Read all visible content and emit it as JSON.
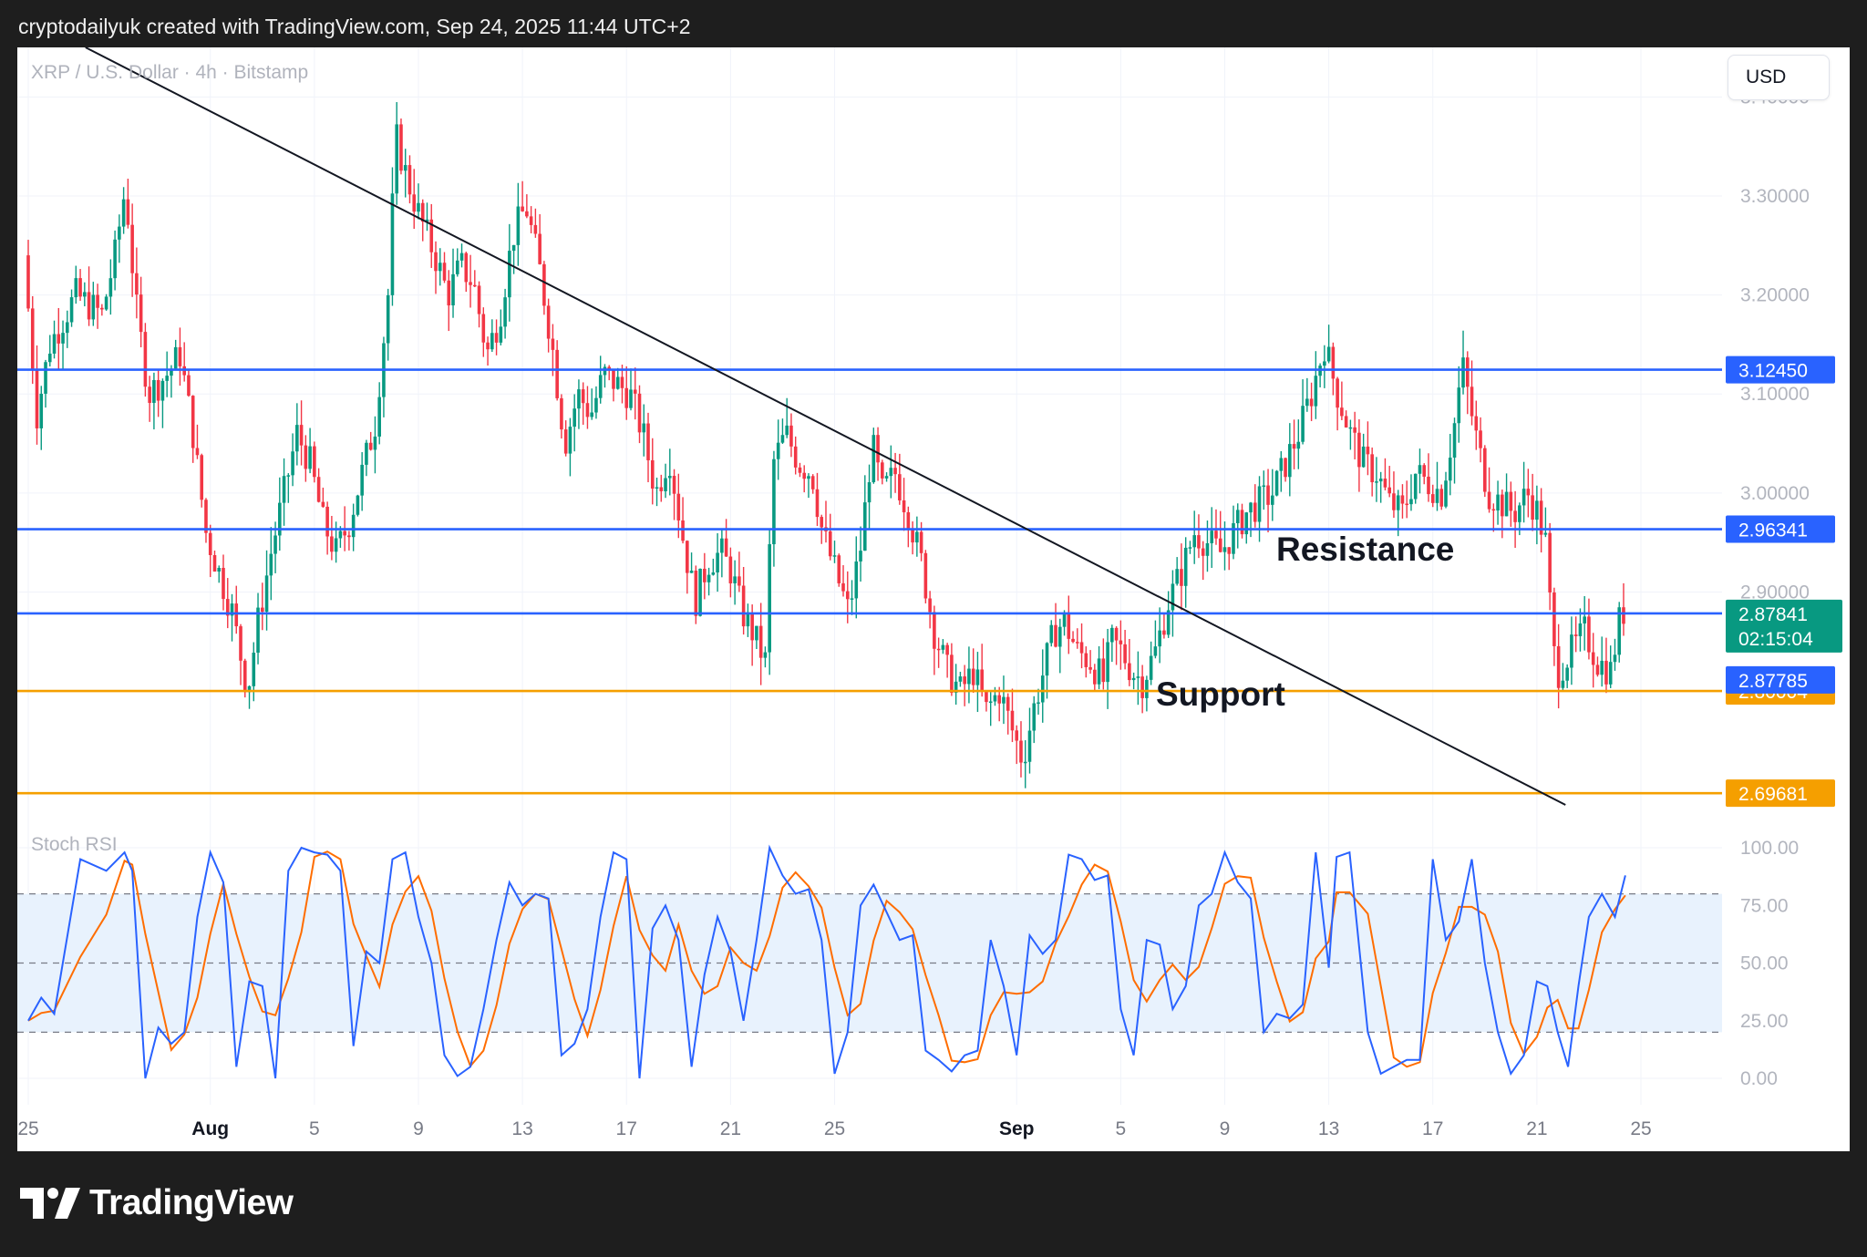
{
  "header": {
    "text": "cryptodailyuk created with TradingView.com, Sep 24, 2025 11:44 UTC+2"
  },
  "symbol_label": "XRP / U.S. Dollar · 4h · Bitstamp",
  "currency_button": "USD",
  "footer": {
    "brand": "TradingView",
    "logo_icon": "tradingview-logo-icon"
  },
  "colors": {
    "up": "#089981",
    "down": "#f23645",
    "blue_level": "#2962ff",
    "orange_level": "#f59f00",
    "stoch_k": "#2962ff",
    "stoch_d": "#ff6d00",
    "stoch_band": "#e8f2fd"
  },
  "chart_data": {
    "type": "candlestick",
    "symbol": "XRP / U.S. Dollar",
    "interval": "4h",
    "exchange": "Bitstamp",
    "date_range": [
      "2025-07-25",
      "2025-09-24"
    ],
    "x_ticks": [
      "25",
      "Aug",
      "5",
      "9",
      "13",
      "17",
      "21",
      "25",
      "Sep",
      "5",
      "9",
      "13",
      "17",
      "21",
      "25"
    ],
    "x_tick_days": [
      0,
      7,
      11,
      15,
      19,
      23,
      27,
      31,
      38,
      42,
      46,
      50,
      54,
      58,
      62
    ],
    "bold_x_ticks": [
      "Aug",
      "Sep"
    ],
    "last_candle_day": 61.4,
    "y_axis": {
      "ticks": [
        "3.40000",
        "3.30000",
        "3.20000",
        "3.10000",
        "3.00000",
        "2.90000"
      ],
      "tick_values": [
        3.4,
        3.3,
        3.2,
        3.1,
        3.0,
        2.9
      ],
      "range": [
        2.65,
        3.45
      ]
    },
    "price_path": [
      [
        0.0,
        3.24
      ],
      [
        0.5,
        3.08
      ],
      [
        1.0,
        3.15
      ],
      [
        2.0,
        3.2
      ],
      [
        3.0,
        3.18
      ],
      [
        3.5,
        3.24
      ],
      [
        3.9,
        3.31
      ],
      [
        4.3,
        3.19
      ],
      [
        4.8,
        3.1
      ],
      [
        5.5,
        3.12
      ],
      [
        6.0,
        3.14
      ],
      [
        6.5,
        3.06
      ],
      [
        7.0,
        2.96
      ],
      [
        7.5,
        2.92
      ],
      [
        8.0,
        2.88
      ],
      [
        8.6,
        2.8
      ],
      [
        9.0,
        2.87
      ],
      [
        9.5,
        2.94
      ],
      [
        10.0,
        3.0
      ],
      [
        10.5,
        3.06
      ],
      [
        11.0,
        3.03
      ],
      [
        11.5,
        2.97
      ],
      [
        12.0,
        2.94
      ],
      [
        12.5,
        2.97
      ],
      [
        13.0,
        3.02
      ],
      [
        13.5,
        3.07
      ],
      [
        14.0,
        3.2
      ],
      [
        14.3,
        3.36
      ],
      [
        14.7,
        3.32
      ],
      [
        15.2,
        3.28
      ],
      [
        15.8,
        3.24
      ],
      [
        16.3,
        3.2
      ],
      [
        16.8,
        3.23
      ],
      [
        17.3,
        3.21
      ],
      [
        17.8,
        3.14
      ],
      [
        18.3,
        3.18
      ],
      [
        18.8,
        3.26
      ],
      [
        19.3,
        3.29
      ],
      [
        19.8,
        3.23
      ],
      [
        20.3,
        3.15
      ],
      [
        20.8,
        3.05
      ],
      [
        21.3,
        3.1
      ],
      [
        21.8,
        3.08
      ],
      [
        22.3,
        3.12
      ],
      [
        22.8,
        3.11
      ],
      [
        23.3,
        3.1
      ],
      [
        23.8,
        3.06
      ],
      [
        24.3,
        3.0
      ],
      [
        24.8,
        3.04
      ],
      [
        25.3,
        2.96
      ],
      [
        25.8,
        2.89
      ],
      [
        26.3,
        2.93
      ],
      [
        26.8,
        2.94
      ],
      [
        27.2,
        2.92
      ],
      [
        27.6,
        2.88
      ],
      [
        28.0,
        2.86
      ],
      [
        28.5,
        2.83
      ],
      [
        28.8,
        3.03
      ],
      [
        29.3,
        3.06
      ],
      [
        29.8,
        3.03
      ],
      [
        30.3,
        3.02
      ],
      [
        30.7,
        2.96
      ],
      [
        31.2,
        2.92
      ],
      [
        31.7,
        2.88
      ],
      [
        32.2,
        2.95
      ],
      [
        32.6,
        3.05
      ],
      [
        33.0,
        3.0
      ],
      [
        33.5,
        3.02
      ],
      [
        34.0,
        2.98
      ],
      [
        34.5,
        2.93
      ],
      [
        35.0,
        2.86
      ],
      [
        35.5,
        2.82
      ],
      [
        36.0,
        2.8
      ],
      [
        36.5,
        2.82
      ],
      [
        37.0,
        2.78
      ],
      [
        37.5,
        2.8
      ],
      [
        38.0,
        2.76
      ],
      [
        38.4,
        2.73
      ],
      [
        38.8,
        2.78
      ],
      [
        39.2,
        2.82
      ],
      [
        39.6,
        2.86
      ],
      [
        40.0,
        2.87
      ],
      [
        40.5,
        2.84
      ],
      [
        41.0,
        2.83
      ],
      [
        41.5,
        2.81
      ],
      [
        41.8,
        2.85
      ],
      [
        42.2,
        2.84
      ],
      [
        42.6,
        2.82
      ],
      [
        43.0,
        2.81
      ],
      [
        43.5,
        2.84
      ],
      [
        44.0,
        2.89
      ],
      [
        44.5,
        2.92
      ],
      [
        45.0,
        2.96
      ],
      [
        45.5,
        2.95
      ],
      [
        46.0,
        2.94
      ],
      [
        46.5,
        2.96
      ],
      [
        47.0,
        2.98
      ],
      [
        47.5,
        2.99
      ],
      [
        48.0,
        3.0
      ],
      [
        48.5,
        3.03
      ],
      [
        49.0,
        3.06
      ],
      [
        49.5,
        3.1
      ],
      [
        50.0,
        3.15
      ],
      [
        50.5,
        3.1
      ],
      [
        51.0,
        3.06
      ],
      [
        51.5,
        3.03
      ],
      [
        52.0,
        3.02
      ],
      [
        52.5,
        2.99
      ],
      [
        53.0,
        2.98
      ],
      [
        53.5,
        3.02
      ],
      [
        54.0,
        3.01
      ],
      [
        54.5,
        3.0
      ],
      [
        55.0,
        3.07
      ],
      [
        55.3,
        3.13
      ],
      [
        55.8,
        3.06
      ],
      [
        56.3,
        3.0
      ],
      [
        56.8,
        2.99
      ],
      [
        57.3,
        2.98
      ],
      [
        57.8,
        3.0
      ],
      [
        58.2,
        2.98
      ],
      [
        58.5,
        2.95
      ],
      [
        58.8,
        2.84
      ],
      [
        59.0,
        2.82
      ],
      [
        59.5,
        2.84
      ],
      [
        60.0,
        2.86
      ],
      [
        60.5,
        2.83
      ],
      [
        61.0,
        2.82
      ],
      [
        61.4,
        2.88
      ]
    ],
    "horizontal_levels": [
      {
        "value": 3.1245,
        "label": "3.12450",
        "color": "#2962ff"
      },
      {
        "value": 2.96341,
        "label": "2.96341",
        "color": "#2962ff"
      },
      {
        "value": 2.87841,
        "label": "2.87841",
        "color": "#2962ff"
      },
      {
        "value": 2.80004,
        "label": "2.80004",
        "color": "#f59f00"
      },
      {
        "value": 2.69681,
        "label": "2.69681",
        "color": "#f59f00"
      }
    ],
    "current_price": {
      "value": 2.87841,
      "label": "2.87841",
      "countdown": "02:15:04"
    },
    "alt_price": {
      "value": 2.87785,
      "label": "2.87785"
    },
    "trendline": {
      "from": [
        2.2,
        3.45
      ],
      "to": [
        59.1,
        2.685
      ]
    },
    "annotations": [
      {
        "text": "Resistance"
      },
      {
        "text": "Support"
      }
    ],
    "stoch_rsi": {
      "label": "Stoch RSI",
      "y_ticks": [
        "100.00",
        "75.00",
        "50.00",
        "25.00",
        "0.00"
      ],
      "tick_values": [
        100,
        75,
        50,
        25,
        0
      ],
      "range": [
        0,
        100
      ],
      "band": [
        20,
        80
      ],
      "midline": 50,
      "k": [
        [
          0.0,
          25
        ],
        [
          0.5,
          35
        ],
        [
          1.0,
          28
        ],
        [
          2.0,
          95
        ],
        [
          3.0,
          90
        ],
        [
          3.7,
          98
        ],
        [
          4.0,
          90
        ],
        [
          4.5,
          0
        ],
        [
          5.0,
          22
        ],
        [
          5.5,
          15
        ],
        [
          6.0,
          20
        ],
        [
          6.5,
          70
        ],
        [
          7.0,
          98
        ],
        [
          7.5,
          85
        ],
        [
          8.0,
          5
        ],
        [
          8.5,
          42
        ],
        [
          9.0,
          40
        ],
        [
          9.5,
          0
        ],
        [
          10.0,
          90
        ],
        [
          10.5,
          100
        ],
        [
          11.0,
          98
        ],
        [
          11.5,
          97
        ],
        [
          12.0,
          90
        ],
        [
          12.5,
          14
        ],
        [
          13.0,
          55
        ],
        [
          13.5,
          50
        ],
        [
          14.0,
          95
        ],
        [
          14.5,
          98
        ],
        [
          15.0,
          70
        ],
        [
          15.5,
          50
        ],
        [
          16.0,
          10
        ],
        [
          16.5,
          1
        ],
        [
          17.0,
          5
        ],
        [
          17.5,
          30
        ],
        [
          18.0,
          60
        ],
        [
          18.5,
          85
        ],
        [
          19.0,
          75
        ],
        [
          19.5,
          80
        ],
        [
          20.0,
          78
        ],
        [
          20.5,
          10
        ],
        [
          21.0,
          15
        ],
        [
          21.5,
          30
        ],
        [
          22.0,
          70
        ],
        [
          22.5,
          98
        ],
        [
          23.0,
          95
        ],
        [
          23.5,
          0
        ],
        [
          24.0,
          65
        ],
        [
          24.5,
          75
        ],
        [
          25.0,
          60
        ],
        [
          25.5,
          5
        ],
        [
          26.0,
          45
        ],
        [
          26.5,
          70
        ],
        [
          27.0,
          55
        ],
        [
          27.5,
          25
        ],
        [
          28.0,
          60
        ],
        [
          28.5,
          100
        ],
        [
          29.0,
          88
        ],
        [
          29.5,
          80
        ],
        [
          30.0,
          82
        ],
        [
          30.5,
          60
        ],
        [
          31.0,
          2
        ],
        [
          31.5,
          20
        ],
        [
          32.0,
          75
        ],
        [
          32.5,
          84
        ],
        [
          33.0,
          72
        ],
        [
          33.5,
          60
        ],
        [
          34.0,
          62
        ],
        [
          34.5,
          12
        ],
        [
          35.0,
          8
        ],
        [
          35.5,
          3
        ],
        [
          36.0,
          10
        ],
        [
          36.5,
          12
        ],
        [
          37.0,
          60
        ],
        [
          37.5,
          40
        ],
        [
          38.0,
          10
        ],
        [
          38.5,
          62
        ],
        [
          39.0,
          54
        ],
        [
          39.5,
          60
        ],
        [
          40.0,
          97
        ],
        [
          40.5,
          95
        ],
        [
          41.0,
          86
        ],
        [
          41.5,
          88
        ],
        [
          42.0,
          30
        ],
        [
          42.5,
          10
        ],
        [
          43.0,
          60
        ],
        [
          43.5,
          58
        ],
        [
          44.0,
          30
        ],
        [
          44.5,
          40
        ],
        [
          45.0,
          75
        ],
        [
          45.5,
          80
        ],
        [
          46.0,
          98
        ],
        [
          46.5,
          85
        ],
        [
          47.0,
          78
        ],
        [
          47.5,
          20
        ],
        [
          48.0,
          28
        ],
        [
          48.5,
          26
        ],
        [
          49.0,
          32
        ],
        [
          49.5,
          98
        ],
        [
          50.0,
          48
        ],
        [
          50.3,
          96
        ],
        [
          50.8,
          98
        ],
        [
          51.5,
          20
        ],
        [
          52.0,
          2
        ],
        [
          52.5,
          5
        ],
        [
          53.0,
          8
        ],
        [
          53.5,
          8
        ],
        [
          54.0,
          95
        ],
        [
          54.5,
          60
        ],
        [
          55.0,
          68
        ],
        [
          55.5,
          95
        ],
        [
          56.0,
          50
        ],
        [
          56.5,
          20
        ],
        [
          57.0,
          2
        ],
        [
          57.5,
          10
        ],
        [
          58.0,
          42
        ],
        [
          58.4,
          40
        ],
        [
          58.8,
          20
        ],
        [
          59.2,
          5
        ],
        [
          59.6,
          40
        ],
        [
          60.0,
          70
        ],
        [
          60.5,
          80
        ],
        [
          61.0,
          70
        ],
        [
          61.4,
          88
        ]
      ]
    }
  }
}
